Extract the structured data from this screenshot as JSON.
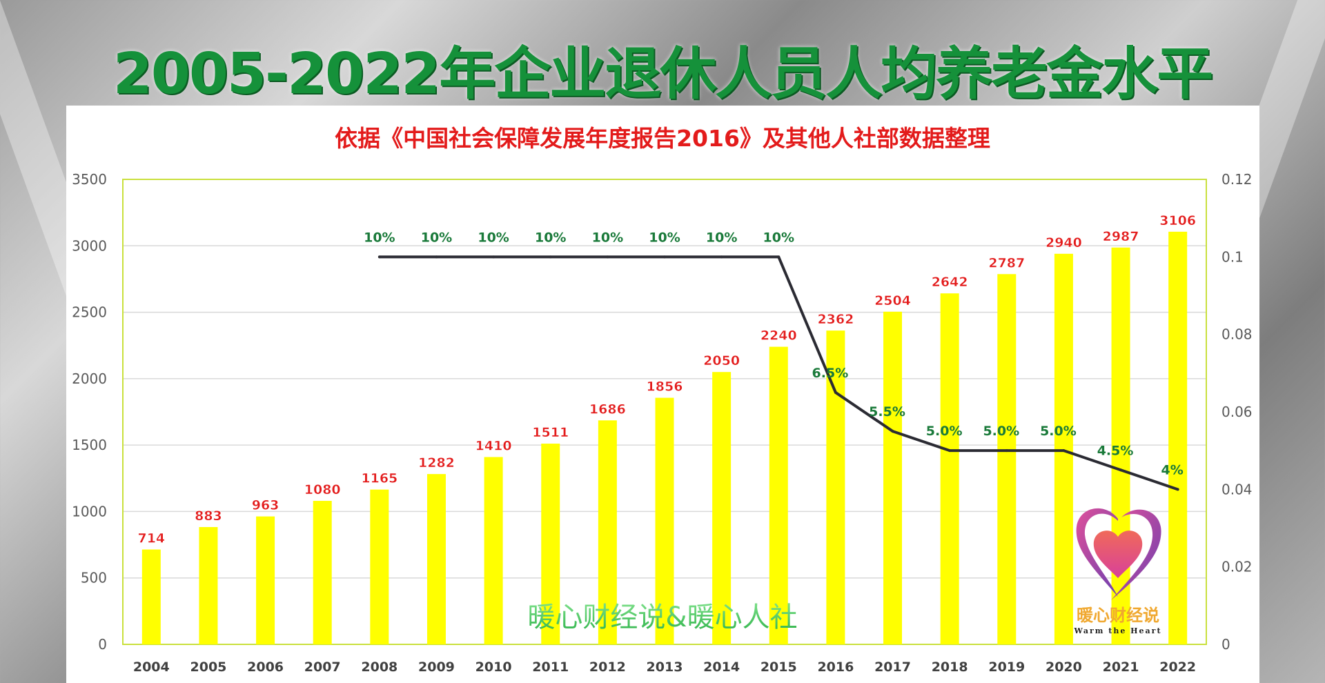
{
  "title": "2005-2022年企业退休人员人均养老金水平",
  "chart_data": {
    "type": "bar+line",
    "title": "依据《中国社会保障发展年度报告2016》及其他人社部数据整理",
    "categories": [
      "2004",
      "2005",
      "2006",
      "2007",
      "2008",
      "2009",
      "2010",
      "2011",
      "2012",
      "2013",
      "2014",
      "2015",
      "2016",
      "2017",
      "2018",
      "2019",
      "2020",
      "2021",
      "2022"
    ],
    "bar_values": [
      714,
      883,
      963,
      1080,
      1165,
      1282,
      1410,
      1511,
      1686,
      1856,
      2050,
      2240,
      2362,
      2504,
      2642,
      2787,
      2940,
      2987,
      3106
    ],
    "line_values": [
      null,
      null,
      null,
      null,
      0.1,
      0.1,
      0.1,
      0.1,
      0.1,
      0.1,
      0.1,
      0.1,
      0.065,
      0.055,
      0.05,
      0.05,
      0.05,
      0.045,
      0.04
    ],
    "line_labels": [
      null,
      null,
      null,
      null,
      "10%",
      "10%",
      "10%",
      "10%",
      "10%",
      "10%",
      "10%",
      "10%",
      "6.5%",
      "5.5%",
      "5.0%",
      "5.0%",
      "5.0%",
      "4.5%",
      "4%"
    ],
    "left_axis": {
      "ylim": [
        0,
        3500
      ],
      "ticks": [
        "0",
        "500",
        "1000",
        "1500",
        "2000",
        "2500",
        "3000",
        "3500"
      ]
    },
    "right_axis": {
      "ylim": [
        0,
        0.12
      ],
      "ticks": [
        "0",
        "0.02",
        "0.04",
        "0.06",
        "0.08",
        "0.1",
        "0.12"
      ]
    },
    "grid": true,
    "colors": {
      "bar": "#ffff00",
      "line": "#2b2b33",
      "bar_label": "#e31b1b",
      "line_label": "#1a7a3a",
      "plot_border": "#c9e03c"
    }
  },
  "watermark": "暖心财经说&暖心人社",
  "logo": {
    "text_cn": "暖心财经说",
    "text_en": "Warm the Heart"
  }
}
